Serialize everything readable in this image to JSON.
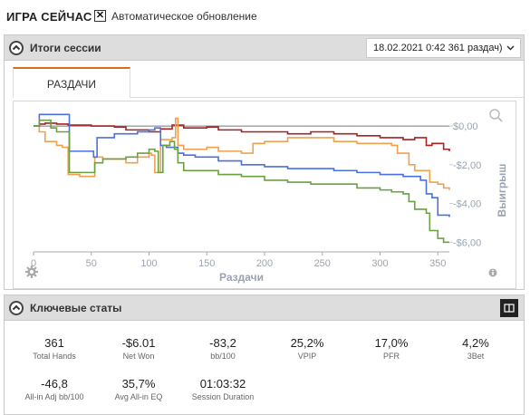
{
  "header": {
    "title": "ИГРА СЕЙЧАС",
    "auto_refresh_label": "Автоматическое обновление",
    "auto_refresh_checked": true
  },
  "session_panel": {
    "title": "Итоги сессии",
    "session_select_value": "18.02.2021 0:42 361 раздач)",
    "tab_label": "РАЗДАЧИ"
  },
  "chart_data": {
    "type": "line",
    "xlabel": "Раздачи",
    "ylabel": "Выигрыш",
    "xlim": [
      0,
      360
    ],
    "ylim": [
      -6.5,
      0.8
    ],
    "x_ticks": [
      0,
      50,
      100,
      150,
      200,
      250,
      300,
      350
    ],
    "x_tick_labels": [
      "0",
      "50",
      "100",
      "150",
      "200",
      "250",
      "300",
      "350"
    ],
    "y_ticks": [
      0,
      -2,
      -4,
      -6
    ],
    "y_tick_labels": [
      "$0,00",
      "-$2,00",
      "-$4,00",
      "-$6,00"
    ],
    "grid": false,
    "series": [
      {
        "color": "#a52323",
        "points": [
          [
            0,
            0
          ],
          [
            5,
            0.1
          ],
          [
            10,
            0.15
          ],
          [
            20,
            0.1
          ],
          [
            30,
            0.05
          ],
          [
            40,
            0.05
          ],
          [
            50,
            0
          ],
          [
            70,
            -0.05
          ],
          [
            80,
            -0.2
          ],
          [
            100,
            -0.3
          ],
          [
            110,
            -0.15
          ],
          [
            120,
            0.05
          ],
          [
            125,
            0.05
          ],
          [
            130,
            -0.1
          ],
          [
            140,
            -0.1
          ],
          [
            150,
            -0.05
          ],
          [
            160,
            -0.2
          ],
          [
            180,
            -0.3
          ],
          [
            200,
            -0.3
          ],
          [
            220,
            -0.4
          ],
          [
            240,
            -0.3
          ],
          [
            260,
            -0.4
          ],
          [
            280,
            -0.5
          ],
          [
            300,
            -0.6
          ],
          [
            320,
            -0.7
          ],
          [
            330,
            -0.6
          ],
          [
            340,
            -1.0
          ],
          [
            345,
            -0.9
          ],
          [
            355,
            -1.2
          ],
          [
            360,
            -1.3
          ]
        ]
      },
      {
        "color": "#f0a050",
        "points": [
          [
            0,
            0
          ],
          [
            5,
            -0.3
          ],
          [
            10,
            -0.8
          ],
          [
            20,
            -1.0
          ],
          [
            25,
            -1.1
          ],
          [
            30,
            -2.5
          ],
          [
            40,
            -2.6
          ],
          [
            50,
            -2.6
          ],
          [
            53,
            -1.6
          ],
          [
            60,
            -1.7
          ],
          [
            80,
            -1.9
          ],
          [
            90,
            -1.6
          ],
          [
            100,
            -1.4
          ],
          [
            102,
            -1.5
          ],
          [
            105,
            -2.4
          ],
          [
            110,
            -0.7
          ],
          [
            120,
            -0.6
          ],
          [
            123,
            0.4
          ],
          [
            125,
            -1.0
          ],
          [
            130,
            -1.2
          ],
          [
            140,
            -1.2
          ],
          [
            150,
            -1.1
          ],
          [
            160,
            -1.3
          ],
          [
            180,
            -1.4
          ],
          [
            190,
            -0.9
          ],
          [
            200,
            -0.8
          ],
          [
            220,
            -0.6
          ],
          [
            240,
            -0.6
          ],
          [
            260,
            -0.8
          ],
          [
            280,
            -0.9
          ],
          [
            300,
            -0.9
          ],
          [
            310,
            -1.0
          ],
          [
            315,
            -1.4
          ],
          [
            325,
            -2.0
          ],
          [
            330,
            -2.3
          ],
          [
            340,
            -2.3
          ],
          [
            343,
            -2.9
          ],
          [
            350,
            -3.0
          ],
          [
            355,
            -3.2
          ],
          [
            360,
            -3.3
          ]
        ]
      },
      {
        "color": "#4a70e0",
        "points": [
          [
            0,
            0
          ],
          [
            5,
            0.6
          ],
          [
            10,
            0.6
          ],
          [
            20,
            0.6
          ],
          [
            30,
            0.6
          ],
          [
            31,
            -1.3
          ],
          [
            50,
            -1.3
          ],
          [
            52,
            -1.6
          ],
          [
            55,
            -0.6
          ],
          [
            70,
            -0.4
          ],
          [
            90,
            -0.3
          ],
          [
            100,
            -0.2
          ],
          [
            105,
            -0.1
          ],
          [
            110,
            -1.0
          ],
          [
            115,
            -1.1
          ],
          [
            120,
            -1.1
          ],
          [
            125,
            -1.4
          ],
          [
            130,
            -1.5
          ],
          [
            140,
            -1.6
          ],
          [
            160,
            -1.8
          ],
          [
            180,
            -2.0
          ],
          [
            200,
            -2.1
          ],
          [
            220,
            -2.2
          ],
          [
            240,
            -2.2
          ],
          [
            260,
            -2.3
          ],
          [
            280,
            -2.4
          ],
          [
            300,
            -2.5
          ],
          [
            315,
            -2.5
          ],
          [
            320,
            -2.6
          ],
          [
            330,
            -2.6
          ],
          [
            335,
            -2.8
          ],
          [
            340,
            -3.5
          ],
          [
            345,
            -3.7
          ],
          [
            350,
            -4.6
          ],
          [
            360,
            -4.7
          ]
        ]
      },
      {
        "color": "#6aa040",
        "points": [
          [
            0,
            0
          ],
          [
            5,
            0.3
          ],
          [
            10,
            0.3
          ],
          [
            15,
            -0.1
          ],
          [
            20,
            -0.3
          ],
          [
            30,
            -0.3
          ],
          [
            31,
            -2.4
          ],
          [
            50,
            -2.4
          ],
          [
            53,
            -1.9
          ],
          [
            60,
            -1.7
          ],
          [
            80,
            -1.6
          ],
          [
            90,
            -1.4
          ],
          [
            100,
            -1.2
          ],
          [
            105,
            -1.3
          ],
          [
            108,
            -2.4
          ],
          [
            112,
            -1.0
          ],
          [
            118,
            -0.8
          ],
          [
            122,
            -1.2
          ],
          [
            125,
            -1.9
          ],
          [
            130,
            -2.3
          ],
          [
            140,
            -2.3
          ],
          [
            160,
            -2.5
          ],
          [
            180,
            -2.6
          ],
          [
            200,
            -2.8
          ],
          [
            220,
            -2.9
          ],
          [
            240,
            -3.0
          ],
          [
            260,
            -3.0
          ],
          [
            280,
            -3.2
          ],
          [
            300,
            -3.3
          ],
          [
            310,
            -3.4
          ],
          [
            320,
            -3.5
          ],
          [
            325,
            -3.9
          ],
          [
            330,
            -4.3
          ],
          [
            340,
            -4.5
          ],
          [
            343,
            -5.4
          ],
          [
            350,
            -5.8
          ],
          [
            355,
            -6.0
          ],
          [
            360,
            -6.0
          ]
        ]
      }
    ]
  },
  "stats_panel": {
    "title": "Ключевые статы",
    "stats": [
      {
        "value": "361",
        "label": "Total Hands"
      },
      {
        "value": "-$6.01",
        "label": "Net Won"
      },
      {
        "value": "-83,2",
        "label": "bb/100"
      },
      {
        "value": "25,2%",
        "label": "VPIP"
      },
      {
        "value": "17,0%",
        "label": "PFR"
      },
      {
        "value": "4,2%",
        "label": "3Bet"
      },
      {
        "value": "-46,8",
        "label": "All-in Adj bb/100"
      },
      {
        "value": "35,7%",
        "label": "Avg All-in EQ"
      },
      {
        "value": "01:03:32",
        "label": "Session Duration"
      }
    ]
  }
}
